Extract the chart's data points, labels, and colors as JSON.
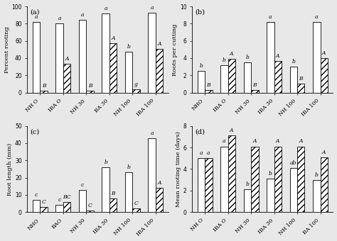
{
  "panels": [
    {
      "label": "(a)",
      "ylabel": "Percent rooting",
      "ylim": [
        0,
        100
      ],
      "yticks": [
        0,
        20,
        40,
        60,
        80,
        100
      ],
      "categories": [
        "NH O",
        "IBA O",
        "NH 30",
        "BA 30",
        "NH 100",
        "IBA 100"
      ],
      "white_bars": [
        82,
        80,
        84,
        92,
        47,
        93
      ],
      "hatch_bars": [
        2,
        33,
        2,
        57,
        4,
        51
      ],
      "white_labels": [
        "a",
        "a",
        "a",
        "a",
        "b",
        "a"
      ],
      "hatch_labels": [
        "B",
        "A",
        "B",
        "A",
        "g",
        "A"
      ]
    },
    {
      "label": "(b)",
      "ylabel": "Roots per cutting",
      "ylim": [
        0,
        10
      ],
      "yticks": [
        0,
        2,
        4,
        6,
        8,
        10
      ],
      "categories": [
        "NHO",
        "IBA O",
        "NH 30",
        "IBA 30",
        "NH 100",
        "IBA 100"
      ],
      "white_bars": [
        2.5,
        3.2,
        3.5,
        8.2,
        3.0,
        8.2
      ],
      "hatch_bars": [
        0.3,
        3.9,
        0.3,
        3.7,
        1.0,
        4.0
      ],
      "white_labels": [
        "b",
        "b",
        "b",
        "a",
        "b",
        "a"
      ],
      "hatch_labels": [
        "B",
        "A",
        "B",
        "A",
        "B",
        "A"
      ]
    },
    {
      "label": "(c)",
      "ylabel": "Root length (mm)",
      "ylim": [
        0,
        50
      ],
      "yticks": [
        0,
        10,
        20,
        30,
        40,
        50
      ],
      "categories": [
        "NHO",
        "BAO",
        "NH 30",
        "IBA 30",
        "NH 100",
        "IBA 100"
      ],
      "white_bars": [
        7,
        4,
        13,
        26,
        23,
        43
      ],
      "hatch_bars": [
        3,
        6,
        1,
        8,
        2,
        14
      ],
      "white_labels": [
        "c",
        "c",
        "c",
        "b",
        "b",
        "a"
      ],
      "hatch_labels": [
        "C",
        "BC",
        "C",
        "B",
        "C",
        "A"
      ]
    },
    {
      "label": "(d)",
      "ylabel": "Mean rooting time (days)",
      "ylim": [
        0,
        8
      ],
      "yticks": [
        0,
        2,
        4,
        6,
        8
      ],
      "categories": [
        "NH O",
        "IBA O",
        "NH 30",
        "IBA 30",
        "NH 100",
        "BA 100"
      ],
      "white_bars": [
        5.0,
        6.1,
        2.1,
        3.1,
        4.1,
        3.0
      ],
      "hatch_bars": [
        5.0,
        7.1,
        6.1,
        6.1,
        6.1,
        5.1
      ],
      "white_labels": [
        "a",
        "a",
        "b",
        "b",
        "ab",
        "b"
      ],
      "hatch_labels": [
        "a",
        "A",
        "A",
        "A",
        "A",
        "A"
      ]
    }
  ],
  "bar_width": 0.32,
  "white_color": "#ffffff",
  "edge_color": "#000000",
  "hatch_pattern": "////",
  "label_fontsize": 5.5,
  "tick_fontsize": 5.5,
  "ylabel_fontsize": 6,
  "panel_label_fontsize": 7,
  "background": "#f0f0f0"
}
